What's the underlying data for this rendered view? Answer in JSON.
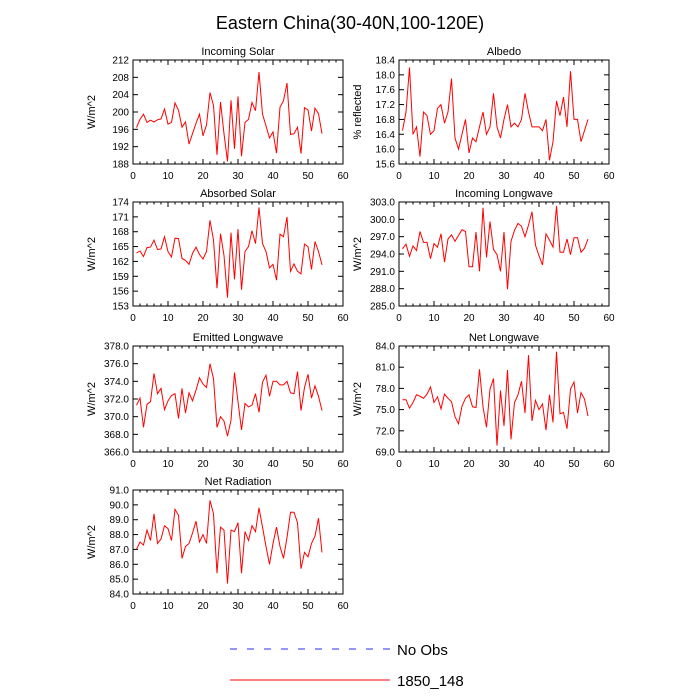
{
  "figure_title": "Eastern China(30-40N,100-120E)",
  "legend": {
    "items": [
      {
        "label": "No Obs",
        "color": "#2b2bff",
        "style": "dashed"
      },
      {
        "label": "1850_148",
        "color": "#ff0000",
        "style": "solid"
      }
    ]
  },
  "chart_data": [
    {
      "type": "line",
      "title": "Incoming Solar",
      "ylabel": "W/m^2",
      "xlim": [
        0,
        60
      ],
      "xticks": [
        0,
        10,
        20,
        30,
        40,
        50,
        60
      ],
      "xtick_labels": [
        "0",
        "10",
        "20",
        "30",
        "40",
        "50",
        "60"
      ],
      "ylim": [
        188,
        212
      ],
      "yticks": [
        188,
        192,
        196,
        200,
        204,
        208,
        212
      ],
      "ytick_labels": [
        "188",
        "192",
        "196",
        "200",
        "204",
        "208",
        "212"
      ],
      "series": [
        {
          "color": "#ff0000",
          "x": [
            1,
            2,
            3,
            4,
            5,
            6,
            7,
            8,
            9,
            10,
            11,
            12,
            13,
            14,
            15,
            16,
            17,
            18,
            19,
            20,
            21,
            22,
            23,
            24,
            25,
            26,
            27,
            28,
            29,
            30,
            31,
            32,
            33,
            34,
            35,
            36,
            37,
            38,
            39,
            40,
            41,
            42,
            43,
            44,
            45,
            46,
            47,
            48,
            49,
            50,
            51,
            52,
            53,
            54
          ],
          "y": [
            196.4,
            198.3,
            199.5,
            197.6,
            198.1,
            197.7,
            198.2,
            198.4,
            200.7,
            197.2,
            197.6,
            202.1,
            200.4,
            196.5,
            197.7,
            192.6,
            195.0,
            197.4,
            199.5,
            194.5,
            197.0,
            204.5,
            201.5,
            190.1,
            202.3,
            195.0,
            188.6,
            202.7,
            191.5,
            203.6,
            189.8,
            197.6,
            198.3,
            202.2,
            200.3,
            209.2,
            199.5,
            196.8,
            194.0,
            195.4,
            190.5,
            201.1,
            202.6,
            206.7,
            194.8,
            195.0,
            196.5,
            190.4,
            201.0,
            200.5,
            195.6,
            200.9,
            199.6,
            195.0
          ]
        }
      ]
    },
    {
      "type": "line",
      "title": "Albedo",
      "ylabel": "% reflected",
      "xlim": [
        0,
        60
      ],
      "xticks": [
        0,
        10,
        20,
        30,
        40,
        50,
        60
      ],
      "xtick_labels": [
        "0",
        "10",
        "20",
        "30",
        "40",
        "50",
        "60"
      ],
      "ylim": [
        15.6,
        18.4
      ],
      "yticks": [
        15.6,
        16.0,
        16.4,
        16.8,
        17.2,
        17.6,
        18.0,
        18.4
      ],
      "ytick_labels": [
        "15.6",
        "16.0",
        "16.4",
        "16.8",
        "17.2",
        "17.6",
        "18.0",
        "18.4"
      ],
      "series": [
        {
          "color": "#ff0000",
          "x": [
            1,
            2,
            3,
            4,
            5,
            6,
            7,
            8,
            9,
            10,
            11,
            12,
            13,
            14,
            15,
            16,
            17,
            18,
            19,
            20,
            21,
            22,
            23,
            24,
            25,
            26,
            27,
            28,
            29,
            30,
            31,
            32,
            33,
            34,
            35,
            36,
            37,
            38,
            39,
            40,
            41,
            42,
            43,
            44,
            45,
            46,
            47,
            48,
            49,
            50,
            51,
            52,
            53,
            54
          ],
          "y": [
            16.5,
            17.0,
            18.2,
            16.4,
            16.6,
            15.8,
            17.0,
            16.9,
            16.4,
            16.5,
            17.1,
            17.2,
            16.7,
            17.0,
            17.9,
            16.3,
            16.0,
            16.4,
            16.8,
            15.9,
            16.3,
            16.2,
            16.6,
            17.0,
            16.4,
            16.6,
            17.5,
            16.6,
            16.3,
            16.8,
            17.2,
            16.6,
            16.7,
            16.6,
            16.8,
            17.5,
            17.0,
            16.6,
            16.6,
            16.6,
            16.5,
            16.8,
            15.7,
            16.2,
            17.3,
            16.9,
            17.4,
            16.6,
            18.1,
            16.8,
            16.8,
            16.2,
            16.5,
            16.8
          ]
        }
      ]
    },
    {
      "type": "line",
      "title": "Absorbed Solar",
      "ylabel": "W/m^2",
      "xlim": [
        0,
        60
      ],
      "xticks": [
        0,
        10,
        20,
        30,
        40,
        50,
        60
      ],
      "xtick_labels": [
        "0",
        "10",
        "20",
        "30",
        "40",
        "50",
        "60"
      ],
      "ylim": [
        153,
        174
      ],
      "yticks": [
        153,
        156,
        159,
        162,
        165,
        168,
        171,
        174
      ],
      "ytick_labels": [
        "153",
        "156",
        "159",
        "162",
        "165",
        "168",
        "171",
        "174"
      ],
      "series": [
        {
          "color": "#ff0000",
          "x": [
            1,
            2,
            3,
            4,
            5,
            6,
            7,
            8,
            9,
            10,
            11,
            12,
            13,
            14,
            15,
            16,
            17,
            18,
            19,
            20,
            21,
            22,
            23,
            24,
            25,
            26,
            27,
            28,
            29,
            30,
            31,
            32,
            33,
            34,
            35,
            36,
            37,
            38,
            39,
            40,
            41,
            42,
            43,
            44,
            45,
            46,
            47,
            48,
            49,
            50,
            51,
            52,
            53,
            54
          ],
          "y": [
            163.7,
            164.1,
            163.0,
            164.8,
            164.9,
            166.3,
            164.4,
            164.5,
            167.0,
            164.0,
            162.9,
            166.7,
            166.6,
            162.6,
            162.2,
            161.4,
            163.6,
            164.9,
            163.4,
            162.5,
            164.0,
            170.3,
            166.3,
            156.6,
            167.6,
            163.2,
            154.7,
            167.8,
            158.4,
            168.5,
            156.3,
            164.0,
            165.0,
            168.2,
            165.6,
            172.9,
            165.6,
            164.0,
            160.7,
            161.4,
            158.2,
            167.5,
            167.0,
            171.0,
            160.0,
            161.5,
            160.0,
            159.5,
            165.5,
            165.0,
            160.4,
            166.0,
            164.0,
            161.3
          ]
        }
      ]
    },
    {
      "type": "line",
      "title": "Incoming Longwave",
      "ylabel": "W/m^2",
      "xlim": [
        0,
        60
      ],
      "xticks": [
        0,
        10,
        20,
        30,
        40,
        50,
        60
      ],
      "xtick_labels": [
        "0",
        "10",
        "20",
        "30",
        "40",
        "50",
        "60"
      ],
      "ylim": [
        285.0,
        303.0
      ],
      "yticks": [
        285,
        288,
        291,
        294,
        297,
        300,
        303
      ],
      "ytick_labels": [
        "285.0",
        "288.0",
        "291.0",
        "294.0",
        "297.0",
        "300.0",
        "303.0"
      ],
      "series": [
        {
          "color": "#ff0000",
          "x": [
            1,
            2,
            3,
            4,
            5,
            6,
            7,
            8,
            9,
            10,
            11,
            12,
            13,
            14,
            15,
            16,
            17,
            18,
            19,
            20,
            21,
            22,
            23,
            24,
            25,
            26,
            27,
            28,
            29,
            30,
            31,
            32,
            33,
            34,
            35,
            36,
            37,
            38,
            39,
            40,
            41,
            42,
            43,
            44,
            45,
            46,
            47,
            48,
            49,
            50,
            51,
            52,
            53,
            54
          ],
          "y": [
            294.9,
            295.7,
            293.6,
            295.4,
            294.6,
            297.9,
            296.0,
            296.0,
            293.2,
            295.8,
            295.2,
            297.5,
            292.6,
            296.6,
            297.3,
            296.2,
            297.2,
            298.2,
            297.9,
            291.8,
            291.8,
            297.8,
            291.0,
            302.0,
            293.4,
            299.6,
            294.8,
            293.9,
            291.0,
            297.8,
            287.9,
            296.2,
            298.1,
            299.3,
            298.8,
            297.0,
            299.0,
            301.3,
            295.5,
            293.7,
            292.1,
            297.5,
            296.4,
            295.2,
            302.3,
            294.3,
            294.3,
            296.6,
            293.9,
            296.8,
            296.8,
            294.3,
            295.0,
            296.6
          ]
        }
      ]
    },
    {
      "type": "line",
      "title": "Emitted Longwave",
      "ylabel": "W/m^2",
      "xlim": [
        0,
        60
      ],
      "xticks": [
        0,
        10,
        20,
        30,
        40,
        50,
        60
      ],
      "xtick_labels": [
        "0",
        "10",
        "20",
        "30",
        "40",
        "50",
        "60"
      ],
      "ylim": [
        366.0,
        378.0
      ],
      "yticks": [
        366,
        368,
        370,
        372,
        374,
        376,
        378
      ],
      "ytick_labels": [
        "366.0",
        "368.0",
        "370.0",
        "372.0",
        "374.0",
        "376.0",
        "378.0"
      ],
      "series": [
        {
          "color": "#ff0000",
          "x": [
            1,
            2,
            3,
            4,
            5,
            6,
            7,
            8,
            9,
            10,
            11,
            12,
            13,
            14,
            15,
            16,
            17,
            18,
            19,
            20,
            21,
            22,
            23,
            24,
            25,
            26,
            27,
            28,
            29,
            30,
            31,
            32,
            33,
            34,
            35,
            36,
            37,
            38,
            39,
            40,
            41,
            42,
            43,
            44,
            45,
            46,
            47,
            48,
            49,
            50,
            51,
            52,
            53,
            54
          ],
          "y": [
            371.3,
            372.1,
            368.8,
            371.4,
            371.7,
            374.9,
            372.6,
            373.2,
            370.8,
            371.8,
            372.4,
            372.6,
            369.8,
            373.2,
            370.4,
            372.7,
            371.8,
            373.0,
            374.4,
            373.7,
            373.3,
            376.0,
            374.3,
            368.8,
            370.0,
            369.5,
            367.8,
            369.6,
            375.0,
            371.7,
            368.5,
            371.5,
            371.1,
            371.3,
            372.6,
            370.5,
            373.9,
            374.7,
            372.3,
            374.0,
            374.0,
            373.6,
            373.6,
            374.0,
            372.7,
            372.6,
            375.1,
            370.7,
            373.3,
            374.8,
            372.1,
            373.5,
            372.3,
            370.7
          ]
        }
      ]
    },
    {
      "type": "line",
      "title": "Net Longwave",
      "ylabel": "W/m^2",
      "xlim": [
        0,
        60
      ],
      "xticks": [
        0,
        10,
        20,
        30,
        40,
        50,
        60
      ],
      "xtick_labels": [
        "0",
        "10",
        "20",
        "30",
        "40",
        "50",
        "60"
      ],
      "ylim": [
        69.0,
        84.0
      ],
      "yticks": [
        69,
        72,
        75,
        78,
        81,
        84
      ],
      "ytick_labels": [
        "69.0",
        "72.0",
        "75.0",
        "78.0",
        "81.0",
        "84.0"
      ],
      "series": [
        {
          "color": "#ff0000",
          "x": [
            1,
            2,
            3,
            4,
            5,
            6,
            7,
            8,
            9,
            10,
            11,
            12,
            13,
            14,
            15,
            16,
            17,
            18,
            19,
            20,
            21,
            22,
            23,
            24,
            25,
            26,
            27,
            28,
            29,
            30,
            31,
            32,
            33,
            34,
            35,
            36,
            37,
            38,
            39,
            40,
            41,
            42,
            43,
            44,
            45,
            46,
            47,
            48,
            49,
            50,
            51,
            52,
            53,
            54
          ],
          "y": [
            76.4,
            76.4,
            75.2,
            76.0,
            77.1,
            76.9,
            76.6,
            77.2,
            78.2,
            76.0,
            76.8,
            75.1,
            77.2,
            76.6,
            76.1,
            74.0,
            73.0,
            75.5,
            76.6,
            77.1,
            75.4,
            75.3,
            80.7,
            75.4,
            72.5,
            77.9,
            79.4,
            69.9,
            77.7,
            72.7,
            80.6,
            70.8,
            76.0,
            77.1,
            79.0,
            74.5,
            82.7,
            73.4,
            76.3,
            75.0,
            75.8,
            72.1,
            77.1,
            73.2,
            83.2,
            74.4,
            74.6,
            72.3,
            77.9,
            78.9,
            74.5,
            77.4,
            76.5,
            74.1
          ]
        }
      ]
    },
    {
      "type": "line",
      "title": "Net Radiation",
      "ylabel": "W/m^2",
      "xlim": [
        0,
        60
      ],
      "xticks": [
        0,
        10,
        20,
        30,
        40,
        50,
        60
      ],
      "xtick_labels": [
        "0",
        "10",
        "20",
        "30",
        "40",
        "50",
        "60"
      ],
      "ylim": [
        84.0,
        91.0
      ],
      "yticks": [
        84,
        85,
        86,
        87,
        88,
        89,
        90,
        91
      ],
      "ytick_labels": [
        "84.0",
        "85.0",
        "86.0",
        "87.0",
        "88.0",
        "89.0",
        "90.0",
        "91.0"
      ],
      "series": [
        {
          "color": "#ff0000",
          "x": [
            1,
            2,
            3,
            4,
            5,
            6,
            7,
            8,
            9,
            10,
            11,
            12,
            13,
            14,
            15,
            16,
            17,
            18,
            19,
            20,
            21,
            22,
            23,
            24,
            25,
            26,
            27,
            28,
            29,
            30,
            31,
            32,
            33,
            34,
            35,
            36,
            37,
            38,
            39,
            40,
            41,
            42,
            43,
            44,
            45,
            46,
            47,
            48,
            49,
            50,
            51,
            52,
            53,
            54
          ],
          "y": [
            87.0,
            87.5,
            87.3,
            88.3,
            87.6,
            89.4,
            87.4,
            87.7,
            88.6,
            88.4,
            87.6,
            89.7,
            89.3,
            86.4,
            87.2,
            87.4,
            88.1,
            88.9,
            87.5,
            88.0,
            87.4,
            90.3,
            89.4,
            85.4,
            88.5,
            88.3,
            84.7,
            88.3,
            88.2,
            88.8,
            85.4,
            88.2,
            87.6,
            88.6,
            88.2,
            89.8,
            88.5,
            87.2,
            86.0,
            87.4,
            88.5,
            87.2,
            86.4,
            87.8,
            89.5,
            89.5,
            88.8,
            85.7,
            86.8,
            86.5,
            87.4,
            87.9,
            89.1,
            86.8
          ]
        }
      ]
    }
  ]
}
